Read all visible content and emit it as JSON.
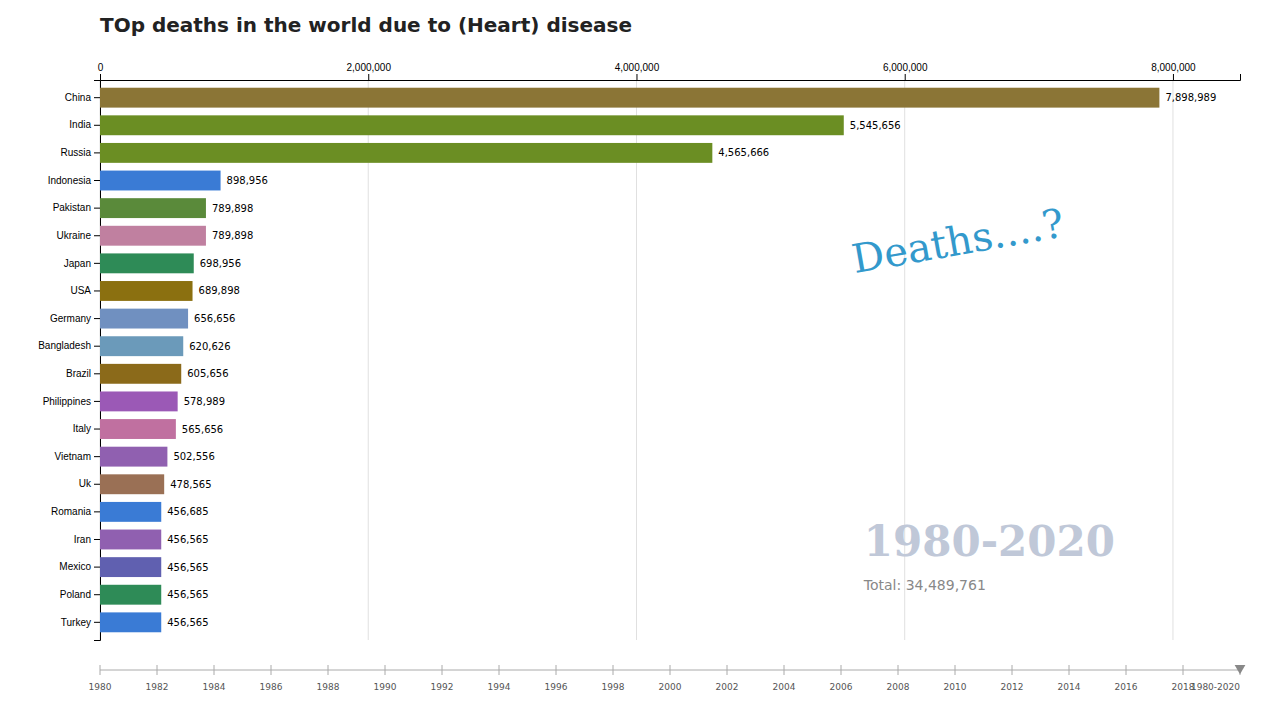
{
  "chart_data": {
    "type": "bar",
    "orientation": "horizontal",
    "title": "TOp deaths in the world due to (Heart) disease",
    "categories": [
      "China",
      "India",
      "Russia",
      "Indonesia",
      "Pakistan",
      "Ukraine",
      "Japan",
      "USA",
      "Germany",
      "Bangladesh",
      "Brazil",
      "Philippines",
      "Italy",
      "Vietnam",
      "Uk",
      "Romania",
      "Iran",
      "Mexico",
      "Poland",
      "Turkey"
    ],
    "values": [
      7898989,
      5545656,
      4565666,
      898956,
      789898,
      789898,
      698956,
      689898,
      656656,
      620626,
      605656,
      578989,
      565656,
      502556,
      478565,
      456685,
      456565,
      456565,
      456565,
      456565
    ],
    "value_labels": [
      "7,898,989",
      "5,545,656",
      "4,565,666",
      "898,956",
      "789,898",
      "789,898",
      "698,956",
      "689,898",
      "656,656",
      "620,626",
      "605,656",
      "578,989",
      "565,656",
      "502,556",
      "478,565",
      "456,685",
      "456,565",
      "456,565",
      "456,565",
      "456,565"
    ],
    "data_labels": true,
    "colors": [
      "#8B7536",
      "#6B8E23",
      "#6B8E23",
      "#3A7BD5",
      "#5A8A3A",
      "#C080A0",
      "#2E8B57",
      "#8B7010",
      "#7090C0",
      "#6B9ABA",
      "#8B6A1A",
      "#9B59B6",
      "#C070A0",
      "#9060B0",
      "#9A7055",
      "#3A7BD5",
      "#9060B0",
      "#6060B0",
      "#2E8B57",
      "#3A7BD5"
    ],
    "xlim": [
      0,
      8500000
    ],
    "xticks": [
      0,
      {
        "value": 2000000,
        "label": "2,000,000"
      },
      {
        "value": 4000000,
        "label": "4,000,000"
      },
      {
        "value": 6000000,
        "label": "6,000,000"
      },
      {
        "value": 8000000,
        "label": "8,000,000"
      }
    ],
    "grid": true,
    "annotations": [
      "Deaths....?",
      "1980-2020",
      "Total: 34,489,761"
    ],
    "timeline": [
      "1980",
      "1982",
      "1984",
      "1986",
      "1988",
      "1990",
      "1992",
      "1994",
      "1996",
      "1998",
      "2000",
      "2002",
      "2004",
      "2006",
      "2008",
      "2010",
      "2012",
      "2014",
      "2016",
      "2018",
      "1980-2020"
    ]
  }
}
